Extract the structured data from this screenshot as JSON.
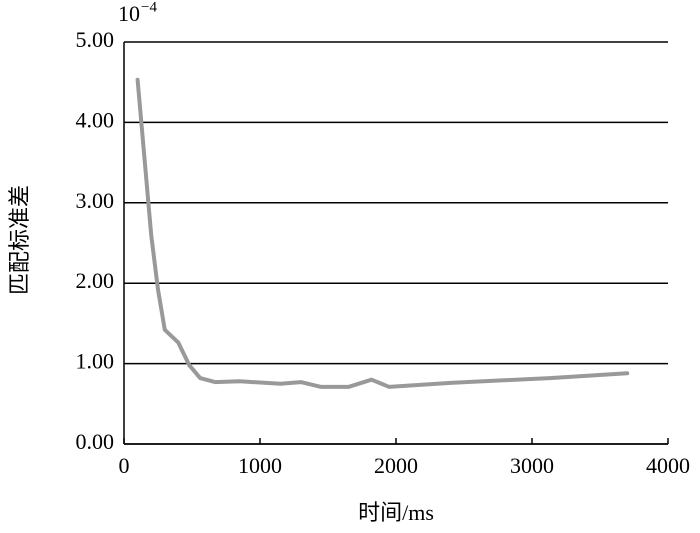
{
  "chart_data": {
    "type": "line",
    "y_label": "匹配标准差",
    "x_label": "时间/ms",
    "y_scale_base": "10",
    "y_scale_exponent": "−4",
    "x": [
      100,
      200,
      250,
      300,
      400,
      480,
      560,
      670,
      850,
      1150,
      1300,
      1450,
      1650,
      1820,
      1950,
      2400,
      3130,
      3700
    ],
    "series": [
      {
        "color": "#999999",
        "values": [
          4.53,
          2.6,
          1.92,
          1.42,
          1.26,
          0.98,
          0.82,
          0.77,
          0.78,
          0.75,
          0.77,
          0.71,
          0.71,
          0.8,
          0.71,
          0.76,
          0.82,
          0.88
        ]
      }
    ],
    "xlim": [
      0,
      4000
    ],
    "xticks": [
      0,
      1000,
      2000,
      3000,
      4000
    ],
    "ylim": [
      0,
      5
    ],
    "yticks": [
      {
        "value": 0,
        "label": "0.00"
      },
      {
        "value": 1,
        "label": "1.00"
      },
      {
        "value": 2,
        "label": "2.00"
      },
      {
        "value": 3,
        "label": "3.00"
      },
      {
        "value": 4,
        "label": "4.00"
      },
      {
        "value": 5,
        "label": "5.00"
      }
    ],
    "grid": true
  }
}
